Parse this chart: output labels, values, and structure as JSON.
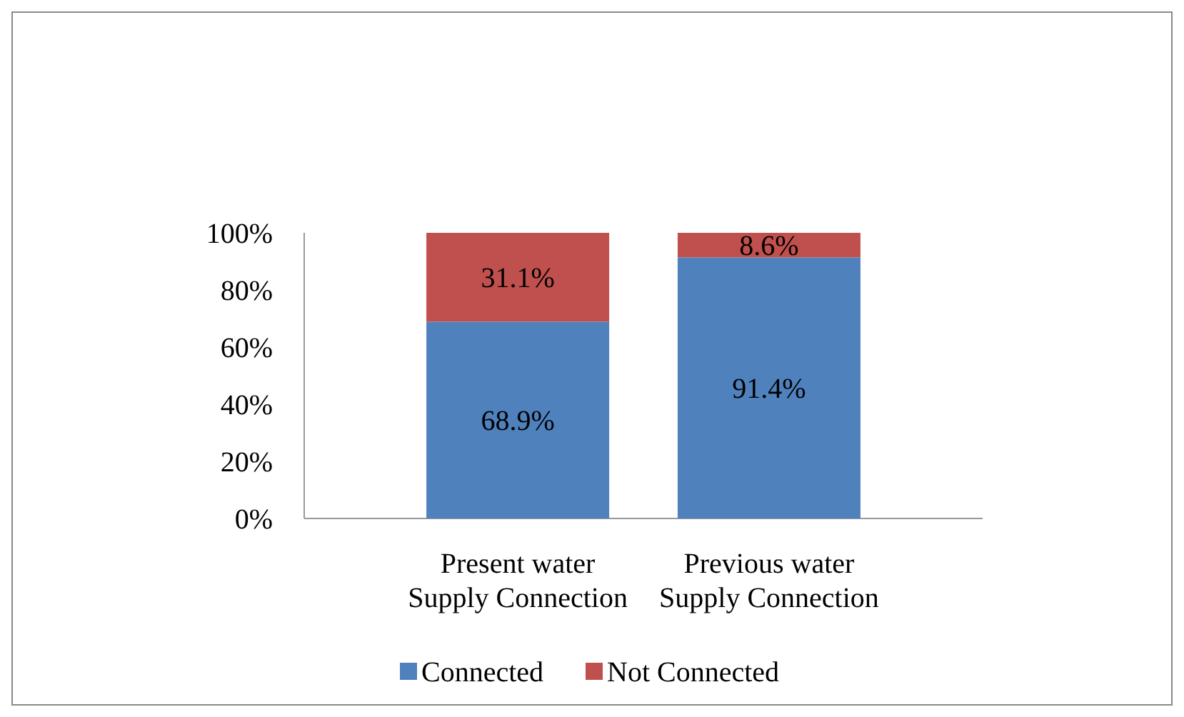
{
  "chart_data": {
    "type": "bar",
    "stacked": true,
    "categories": [
      "Present water Supply Connection",
      "Previous water Supply Connection"
    ],
    "series": [
      {
        "name": "Connected",
        "color": "#4f81bd",
        "values": [
          68.9,
          91.4
        ],
        "value_labels": [
          "68.9%",
          "91.4%"
        ]
      },
      {
        "name": "Not Connected",
        "color": "#c0504d",
        "values": [
          31.1,
          8.6
        ],
        "value_labels": [
          "31.1%",
          "8.6%"
        ]
      }
    ],
    "ylim": [
      0,
      100
    ],
    "yticks": [
      {
        "value": 0,
        "label": "0%"
      },
      {
        "value": 20,
        "label": "20%"
      },
      {
        "value": 40,
        "label": "40%"
      },
      {
        "value": 60,
        "label": "60%"
      },
      {
        "value": 80,
        "label": "80%"
      },
      {
        "value": 100,
        "label": "100%"
      }
    ],
    "legend": "bottom"
  }
}
